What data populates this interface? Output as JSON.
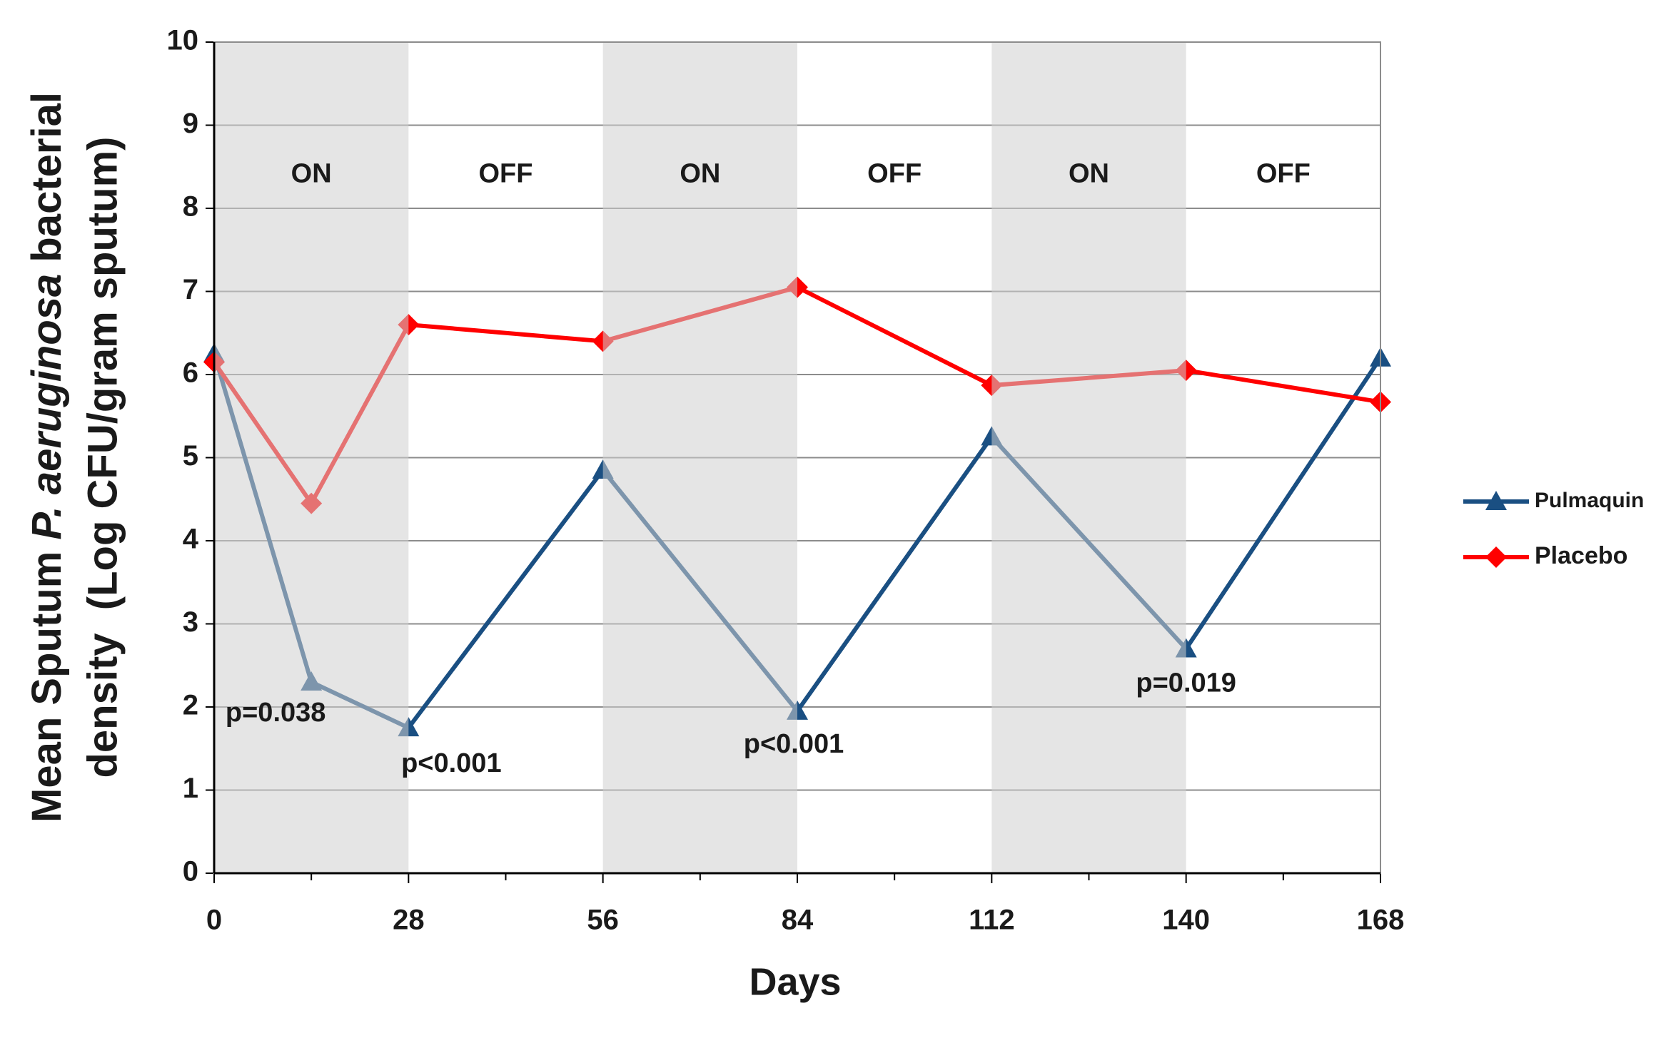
{
  "chart_data": {
    "type": "line",
    "xlabel": "Days",
    "ylabel": [
      {
        "text": "Mean Sputum "
      },
      {
        "text": "P. aeruginosa",
        "italic": true
      },
      {
        "text": " bacterial"
      }
    ],
    "ylabel2": "density  (Log CFU/gram sputum)",
    "x": [
      0,
      14,
      28,
      56,
      84,
      112,
      140,
      168
    ],
    "series": [
      {
        "name": "Pulmaquin",
        "color": "#1a4f82",
        "marker": "triangle",
        "values": [
          6.25,
          2.3,
          1.75,
          4.85,
          1.95,
          5.25,
          2.7,
          6.2
        ]
      },
      {
        "name": "Placebo",
        "color": "#ff0000",
        "marker": "diamond",
        "values": [
          6.15,
          4.45,
          6.6,
          6.4,
          7.05,
          5.87,
          6.05,
          5.67
        ]
      }
    ],
    "xlim": [
      0,
      168
    ],
    "xticks": [
      0,
      28,
      56,
      84,
      112,
      140,
      168
    ],
    "xminor_ticks": [
      14,
      42,
      70,
      98,
      126,
      154
    ],
    "ylim": [
      0,
      10
    ],
    "yticks": [
      0,
      1,
      2,
      3,
      4,
      5,
      6,
      7,
      8,
      9,
      10
    ],
    "grid": true,
    "phases": [
      {
        "label": "ON",
        "start": 0,
        "end": 28,
        "shaded": true
      },
      {
        "label": "OFF",
        "start": 28,
        "end": 56,
        "shaded": false
      },
      {
        "label": "ON",
        "start": 56,
        "end": 84,
        "shaded": true
      },
      {
        "label": "OFF",
        "start": 84,
        "end": 112,
        "shaded": false
      },
      {
        "label": "ON",
        "start": 112,
        "end": 140,
        "shaded": true
      },
      {
        "label": "OFF",
        "start": 140,
        "end": 168,
        "shaded": false
      }
    ],
    "annotations": [
      {
        "text": "p=0.038",
        "x": 14,
        "y": 2.3
      },
      {
        "text": "p<0.001",
        "x": 28,
        "y": 1.75
      },
      {
        "text": "p<0.001",
        "x": 84,
        "y": 1.95
      },
      {
        "text": "p=0.019",
        "x": 140,
        "y": 2.7
      }
    ],
    "legend": "right"
  }
}
